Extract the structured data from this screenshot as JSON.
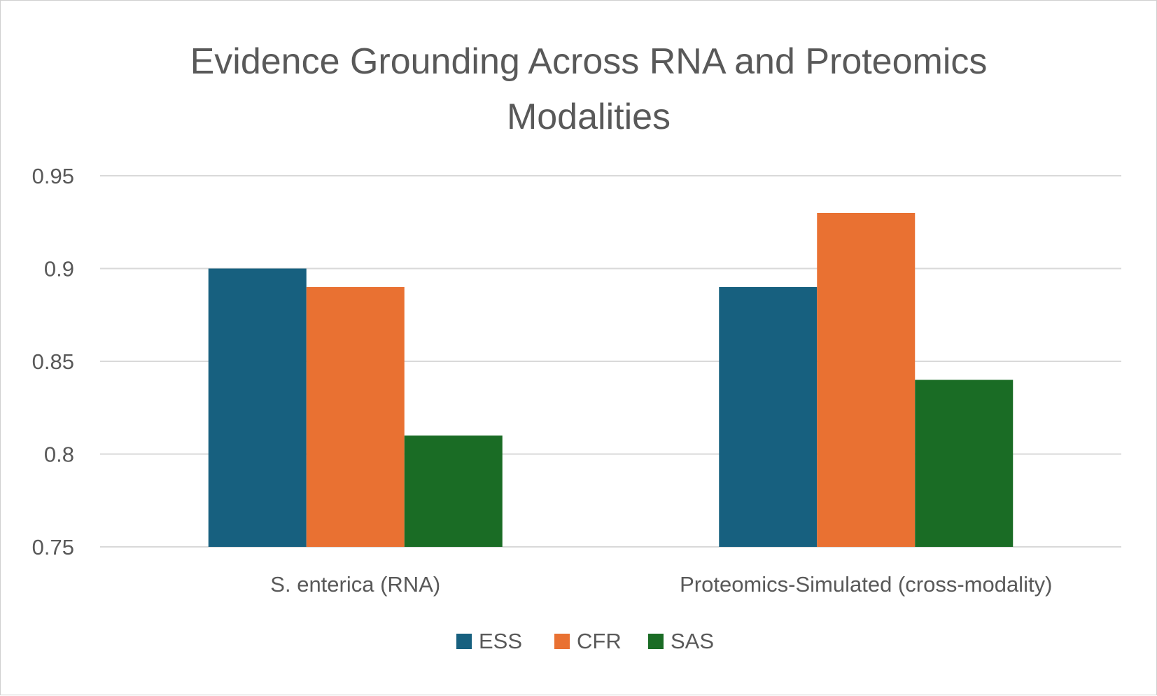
{
  "chart_data": {
    "type": "bar",
    "title_lines": [
      "Evidence Grounding Across RNA and Proteomics",
      "Modalities"
    ],
    "categories": [
      "S. enterica (RNA)",
      "Proteomics-Simulated (cross-modality)"
    ],
    "series": [
      {
        "name": "ESS",
        "color": "#17607f",
        "values": [
          0.9,
          0.89
        ]
      },
      {
        "name": "CFR",
        "color": "#e97132",
        "values": [
          0.89,
          0.93
        ]
      },
      {
        "name": "SAS",
        "color": "#1a6c25",
        "values": [
          0.81,
          0.84
        ]
      }
    ],
    "ylim": [
      0.75,
      0.95
    ],
    "yticks": [
      0.75,
      0.8,
      0.85,
      0.9,
      0.95
    ],
    "ytick_labels": [
      "0.75",
      "0.8",
      "0.85",
      "0.9",
      "0.95"
    ],
    "xlabel": "",
    "ylabel": "",
    "grid": true,
    "legend_position": "bottom-center"
  }
}
